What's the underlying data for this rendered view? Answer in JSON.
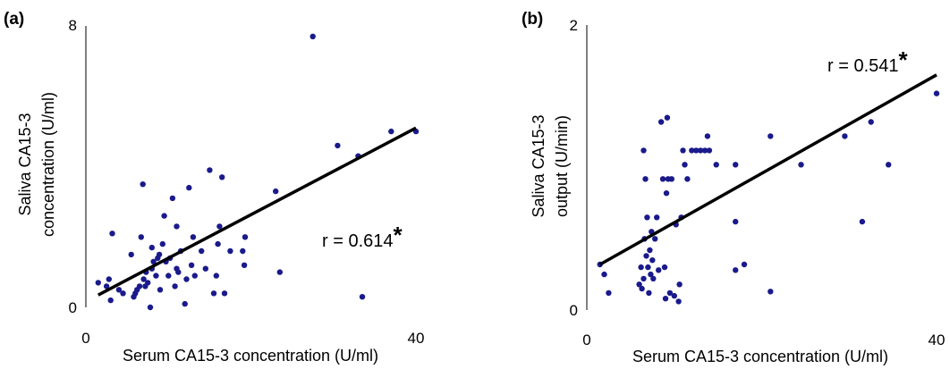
{
  "chart_data": [
    {
      "type": "scatter",
      "panel_label": "(a)",
      "title": "",
      "xlabel": "Serum CA15-3 concentration (U/ml)",
      "ylabel_lines": [
        "Saliva CA15-3",
        "concentration (U/ml)"
      ],
      "xlim": [
        0,
        40
      ],
      "ylim": [
        0,
        8
      ],
      "x_ticks": [
        "0",
        "40"
      ],
      "y_ticks": [
        "0",
        "8"
      ],
      "grid": false,
      "point_color": "#1a1a8c",
      "line_color": "#000000",
      "annotation": {
        "text": "r = 0.614",
        "star": "*"
      },
      "trendline": {
        "x": [
          1.5,
          40
        ],
        "y": [
          0.35,
          5.1
        ]
      },
      "points": [
        [
          1.5,
          0.7
        ],
        [
          2.5,
          0.6
        ],
        [
          2.8,
          0.8
        ],
        [
          3.0,
          0.2
        ],
        [
          3.2,
          2.1
        ],
        [
          4.0,
          0.5
        ],
        [
          4.5,
          0.4
        ],
        [
          5.5,
          1.5
        ],
        [
          5.8,
          0.3
        ],
        [
          6.0,
          0.4
        ],
        [
          6.2,
          0.5
        ],
        [
          6.5,
          0.6
        ],
        [
          6.7,
          2.0
        ],
        [
          6.9,
          3.5
        ],
        [
          7.0,
          0.8
        ],
        [
          7.2,
          0.6
        ],
        [
          7.3,
          1.0
        ],
        [
          7.5,
          0.7
        ],
        [
          7.8,
          0.0
        ],
        [
          8.0,
          1.7
        ],
        [
          8.0,
          1.1
        ],
        [
          8.2,
          1.3
        ],
        [
          8.5,
          0.9
        ],
        [
          8.7,
          1.4
        ],
        [
          8.9,
          1.5
        ],
        [
          9.0,
          0.5
        ],
        [
          9.3,
          1.8
        ],
        [
          9.5,
          2.6
        ],
        [
          9.7,
          1.3
        ],
        [
          10.0,
          0.9
        ],
        [
          10.2,
          1.4
        ],
        [
          10.5,
          3.1
        ],
        [
          10.8,
          0.6
        ],
        [
          11.0,
          2.3
        ],
        [
          11.0,
          1.1
        ],
        [
          11.2,
          1.0
        ],
        [
          11.5,
          1.6
        ],
        [
          12.0,
          0.1
        ],
        [
          12.2,
          0.8
        ],
        [
          12.5,
          3.4
        ],
        [
          12.8,
          1.2
        ],
        [
          13.0,
          2.0
        ],
        [
          13.2,
          0.9
        ],
        [
          14.0,
          1.6
        ],
        [
          14.5,
          1.1
        ],
        [
          15.0,
          3.9
        ],
        [
          15.5,
          0.4
        ],
        [
          15.8,
          0.9
        ],
        [
          16.0,
          1.8
        ],
        [
          16.2,
          2.3
        ],
        [
          16.5,
          3.7
        ],
        [
          16.8,
          0.4
        ],
        [
          17.5,
          1.6
        ],
        [
          19.0,
          1.6
        ],
        [
          19.2,
          1.2
        ],
        [
          19.3,
          2.0
        ],
        [
          23.0,
          3.3
        ],
        [
          23.5,
          1.0
        ],
        [
          27.5,
          7.7
        ],
        [
          30.5,
          4.6
        ],
        [
          33.0,
          4.3
        ],
        [
          33.5,
          0.3
        ],
        [
          37.0,
          5.0
        ],
        [
          40.0,
          5.0
        ]
      ]
    },
    {
      "type": "scatter",
      "panel_label": "(b)",
      "title": "",
      "xlabel": "Serum CA15-3 concentration (U/ml)",
      "ylabel_lines": [
        "Saliva CA15-3",
        "output  (U/min)"
      ],
      "xlim": [
        0,
        40
      ],
      "ylim": [
        0,
        2
      ],
      "x_ticks": [
        "0",
        "40"
      ],
      "y_ticks": [
        "0",
        "2"
      ],
      "grid": false,
      "point_color": "#1a1a8c",
      "line_color": "#000000",
      "annotation": {
        "text": "r = 0.541",
        "star": "*"
      },
      "trendline": {
        "x": [
          1.5,
          40
        ],
        "y": [
          0.32,
          1.65
        ]
      },
      "points": [
        [
          1.5,
          0.32
        ],
        [
          2.0,
          0.25
        ],
        [
          2.5,
          0.12
        ],
        [
          6.0,
          0.18
        ],
        [
          6.2,
          0.3
        ],
        [
          6.3,
          0.15
        ],
        [
          6.5,
          0.22
        ],
        [
          6.5,
          1.12
        ],
        [
          6.6,
          0.5
        ],
        [
          6.7,
          0.92
        ],
        [
          6.8,
          0.38
        ],
        [
          6.9,
          0.65
        ],
        [
          7.0,
          0.3
        ],
        [
          7.1,
          0.12
        ],
        [
          7.2,
          0.42
        ],
        [
          7.3,
          0.25
        ],
        [
          7.4,
          0.55
        ],
        [
          7.5,
          0.35
        ],
        [
          7.6,
          0.22
        ],
        [
          7.8,
          0.5
        ],
        [
          8.0,
          0.65
        ],
        [
          8.2,
          0.28
        ],
        [
          8.5,
          1.32
        ],
        [
          8.7,
          0.92
        ],
        [
          8.9,
          0.3
        ],
        [
          9.0,
          0.08
        ],
        [
          9.1,
          0.82
        ],
        [
          9.2,
          1.35
        ],
        [
          9.3,
          0.92
        ],
        [
          9.5,
          0.12
        ],
        [
          9.7,
          0.92
        ],
        [
          10.0,
          0.1
        ],
        [
          10.2,
          0.6
        ],
        [
          10.5,
          0.06
        ],
        [
          10.6,
          0.18
        ],
        [
          10.8,
          0.65
        ],
        [
          11.0,
          1.12
        ],
        [
          11.2,
          1.02
        ],
        [
          11.5,
          0.92
        ],
        [
          12.0,
          1.12
        ],
        [
          12.5,
          1.12
        ],
        [
          13.0,
          1.12
        ],
        [
          13.5,
          1.12
        ],
        [
          13.8,
          1.22
        ],
        [
          14.0,
          1.12
        ],
        [
          14.8,
          1.02
        ],
        [
          17.0,
          1.02
        ],
        [
          17.0,
          0.62
        ],
        [
          17.0,
          0.28
        ],
        [
          18.0,
          0.32
        ],
        [
          21.0,
          0.13
        ],
        [
          21.0,
          1.22
        ],
        [
          24.5,
          1.02
        ],
        [
          29.5,
          1.22
        ],
        [
          31.5,
          0.62
        ],
        [
          32.5,
          1.32
        ],
        [
          34.5,
          1.02
        ],
        [
          40.0,
          1.52
        ]
      ]
    }
  ]
}
